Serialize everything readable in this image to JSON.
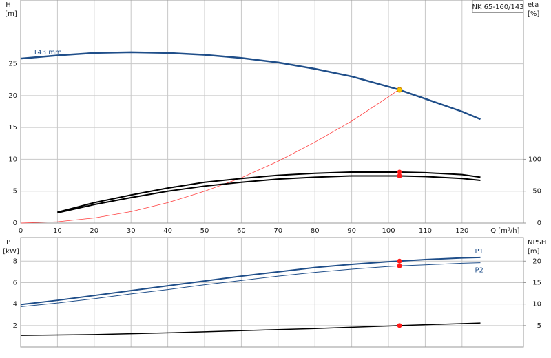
{
  "chart_data": [
    {
      "type": "line",
      "title": "NK 65-160/143",
      "ylabel": "H",
      "yunit": "[m]",
      "y2label": "eta",
      "y2unit": "[%]",
      "xlabel": "Q [m³/h]",
      "x": [
        0,
        10,
        20,
        30,
        40,
        50,
        60,
        70,
        80,
        90,
        100,
        103,
        110,
        120,
        125
      ],
      "xlim": [
        0,
        136.7
      ],
      "xticks": [
        0,
        10,
        20,
        30,
        40,
        50,
        60,
        70,
        80,
        90,
        100,
        110,
        120
      ],
      "ylim": [
        0,
        35
      ],
      "yticks": [
        0,
        5,
        10,
        15,
        20,
        25
      ],
      "y2lim": [
        0,
        350
      ],
      "y2ticks": [
        0,
        50,
        100
      ],
      "grid": true,
      "xtick_labels": true,
      "series": [
        {
          "name": "143 mm",
          "label_at": "start",
          "label_side": "above",
          "color": "#1f4e89",
          "width": 2.5,
          "values": [
            25.8,
            26.3,
            26.7,
            26.8,
            26.7,
            26.4,
            25.9,
            25.2,
            24.2,
            23.0,
            21.4,
            20.9,
            19.5,
            17.5,
            16.3
          ]
        },
        {
          "color": "#ff3b3b",
          "width": 0.8,
          "values": [
            0,
            0.2,
            0.8,
            1.8,
            3.2,
            5.0,
            7.1,
            9.7,
            12.7,
            16.0,
            19.8,
            21.0,
            null,
            null,
            null
          ]
        },
        {
          "color": "#000000",
          "width": 2,
          "axis": "y2",
          "values": [
            null,
            17,
            32,
            44,
            55,
            64,
            70,
            75,
            78,
            80,
            80,
            80,
            79,
            76,
            72
          ]
        },
        {
          "color": "#000000",
          "width": 2,
          "axis": "y2",
          "values": [
            null,
            16,
            29,
            40,
            50,
            58,
            64,
            69,
            72,
            74,
            74,
            74,
            73,
            70,
            67
          ]
        }
      ],
      "points": [
        {
          "x": 103,
          "y": 20.9,
          "color": "#f5c800"
        },
        {
          "x": 103,
          "y": 80,
          "axis": "y2",
          "color": "#ff1a1a"
        },
        {
          "x": 103,
          "y": 74,
          "axis": "y2",
          "color": "#ff1a1a"
        }
      ]
    },
    {
      "type": "line",
      "ylabel": "P",
      "yunit": "[kW]",
      "y2label": "NPSH",
      "y2unit": "[m]",
      "x": [
        0,
        10,
        20,
        30,
        40,
        50,
        60,
        70,
        80,
        90,
        100,
        103,
        110,
        120,
        125
      ],
      "xlim": [
        0,
        136.7
      ],
      "xticks": [
        0,
        10,
        20,
        30,
        40,
        50,
        60,
        70,
        80,
        90,
        100,
        110,
        120
      ],
      "ylim": [
        0,
        10.2
      ],
      "yticks": [
        2,
        4,
        6,
        8
      ],
      "y2lim": [
        0,
        25.5
      ],
      "y2ticks": [
        5,
        10,
        15,
        20
      ],
      "grid": true,
      "xtick_labels": false,
      "series": [
        {
          "name": "P1",
          "label_at": "end",
          "label_side": "above",
          "color": "#1f4e89",
          "width": 2,
          "values": [
            3.95,
            4.35,
            4.8,
            5.25,
            5.7,
            6.15,
            6.6,
            7.0,
            7.4,
            7.7,
            7.95,
            8.0,
            8.15,
            8.3,
            8.35
          ]
        },
        {
          "name": "P2",
          "label_at": "end",
          "label_side": "below",
          "color": "#1f4e89",
          "width": 1,
          "values": [
            3.75,
            4.1,
            4.5,
            4.95,
            5.35,
            5.8,
            6.2,
            6.6,
            6.95,
            7.25,
            7.5,
            7.55,
            7.65,
            7.8,
            7.85
          ]
        },
        {
          "color": "#000000",
          "width": 1.5,
          "axis": "y2",
          "values": [
            2.7,
            2.8,
            2.9,
            3.1,
            3.3,
            3.55,
            3.8,
            4.05,
            4.3,
            4.6,
            4.9,
            5.0,
            5.2,
            5.45,
            5.6
          ]
        }
      ],
      "points": [
        {
          "x": 103,
          "y": 8.0,
          "color": "#ff1a1a"
        },
        {
          "x": 103,
          "y": 7.55,
          "color": "#ff1a1a"
        },
        {
          "x": 103,
          "y": 5.0,
          "axis": "y2",
          "color": "#ff1a1a"
        }
      ]
    }
  ]
}
